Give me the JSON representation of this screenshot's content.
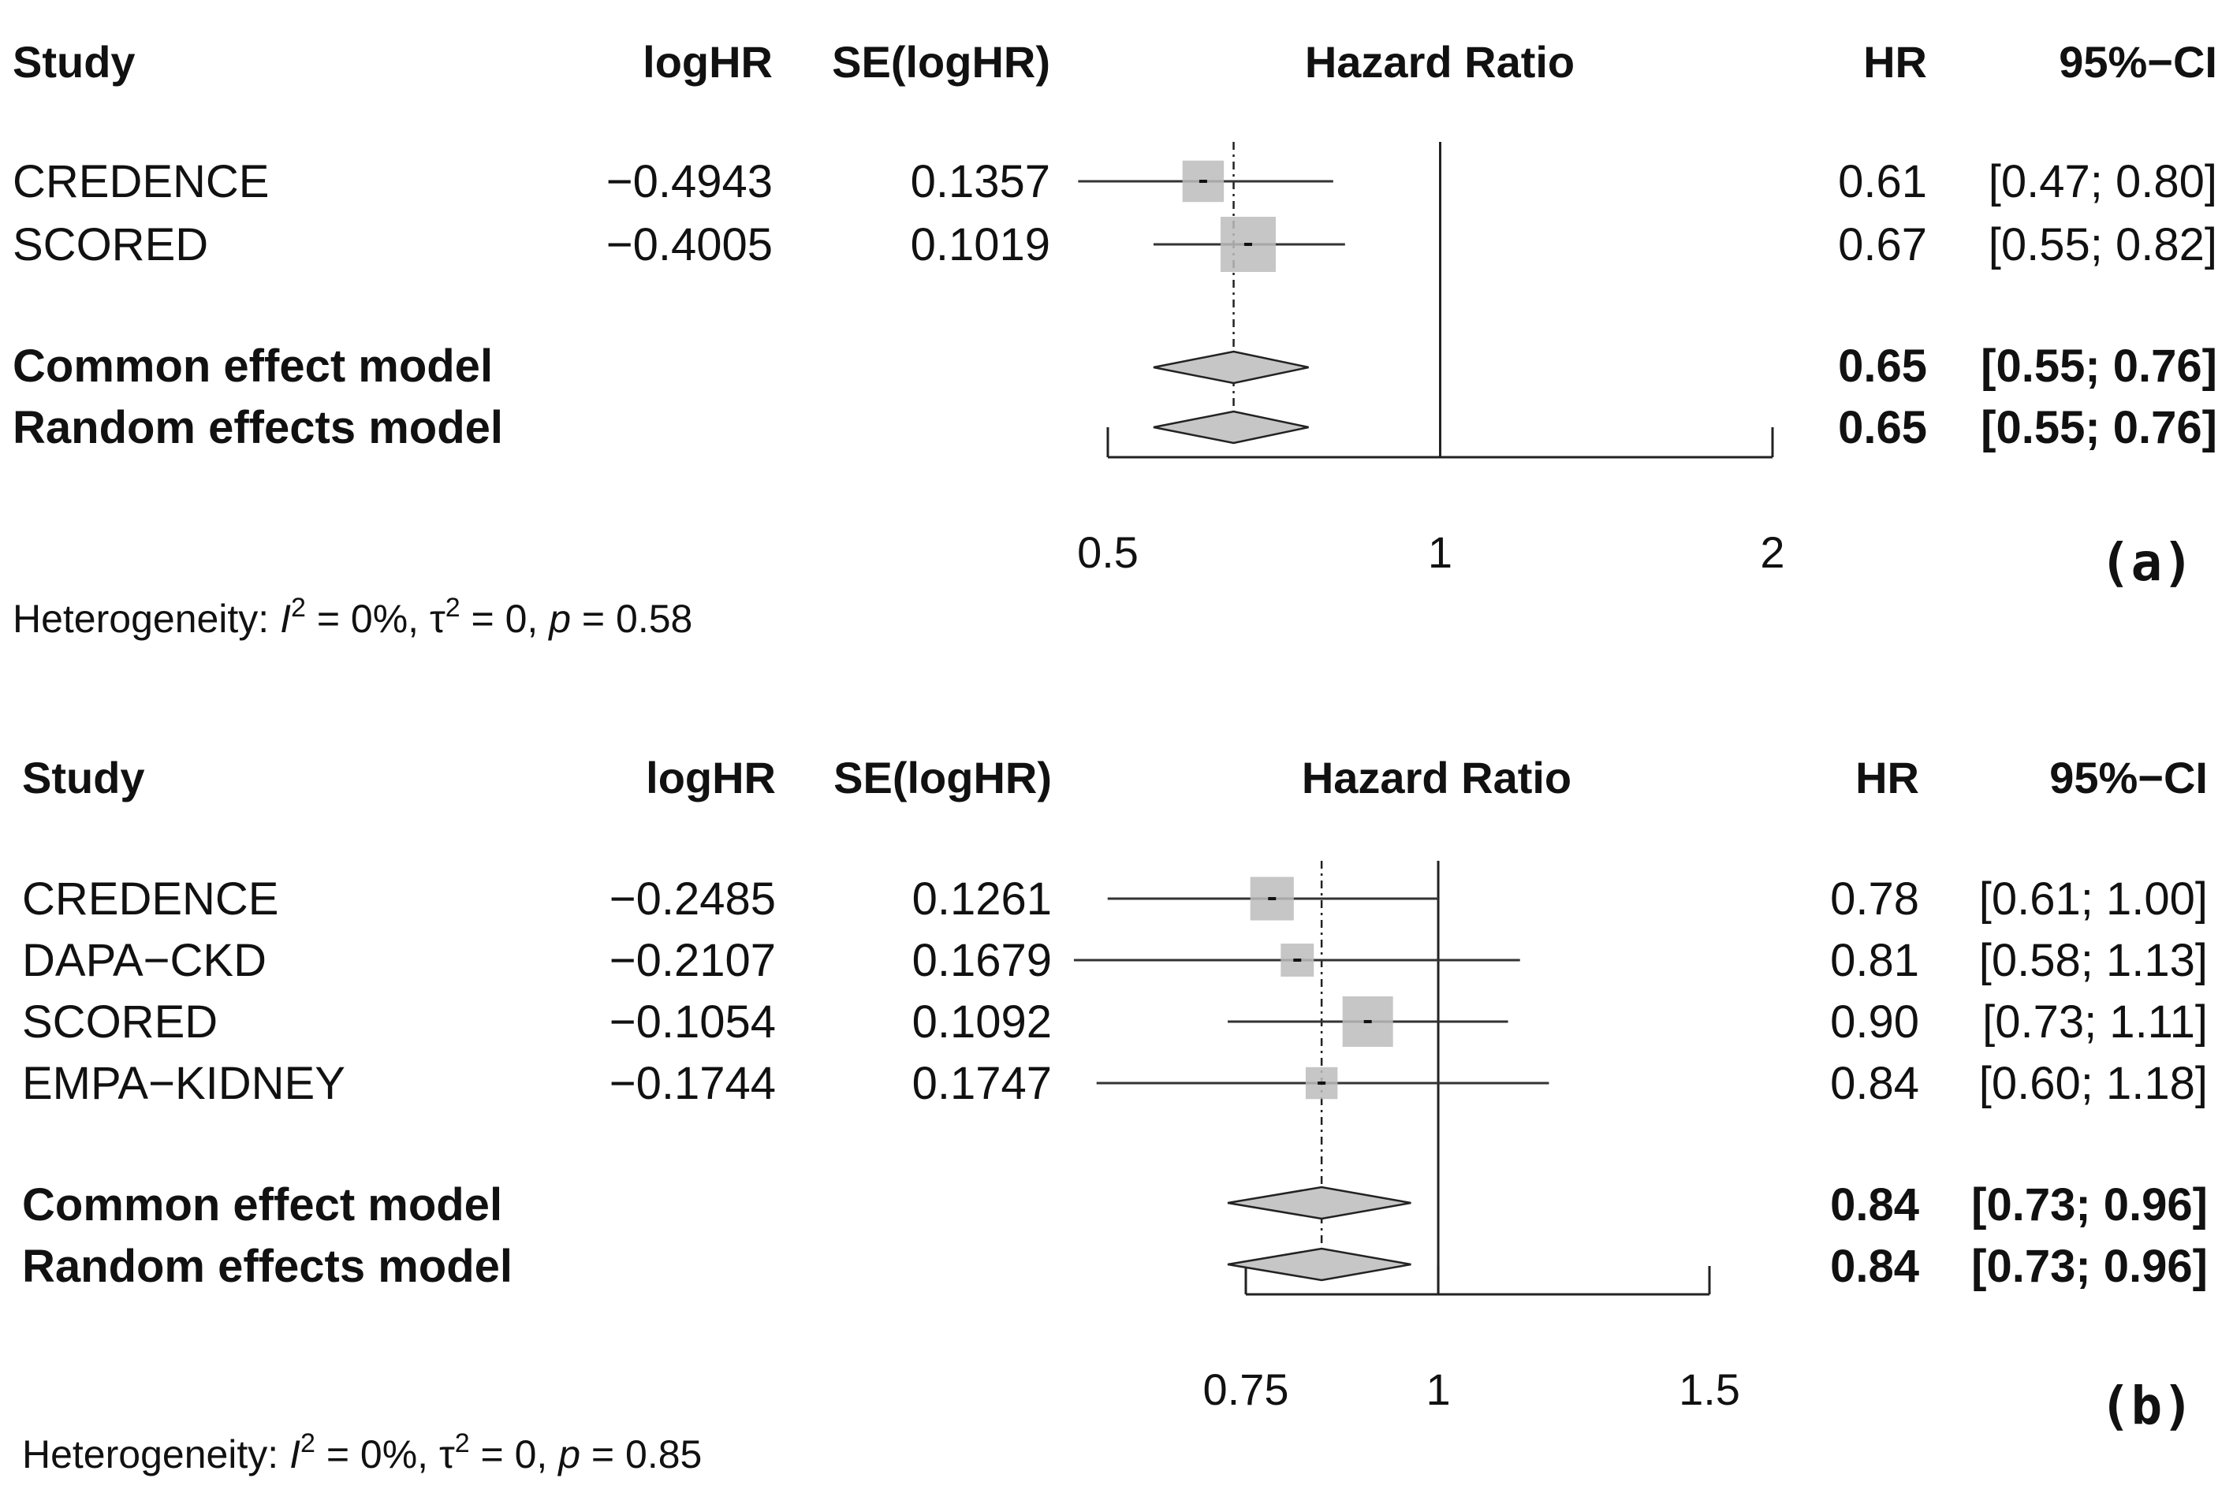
{
  "chart_data": [
    {
      "type": "forest",
      "panel_label": "(a)",
      "measure": "Hazard Ratio",
      "columns": {
        "study": "Study",
        "est": "logHR",
        "se": "SE(logHR)",
        "plot": "Hazard Ratio",
        "hr": "HR",
        "ci": "95%−CI"
      },
      "studies": [
        {
          "name": "CREDENCE",
          "loghr": "−0.4943",
          "se": "0.1357",
          "hr_text": "0.61",
          "ci_text": "[0.47; 0.80]",
          "hr": 0.61,
          "lo": 0.47,
          "hi": 0.8,
          "weight": 0.36
        },
        {
          "name": "SCORED",
          "loghr": "−0.4005",
          "se": "0.1019",
          "hr_text": "0.67",
          "ci_text": "[0.55; 0.82]",
          "hr": 0.67,
          "lo": 0.55,
          "hi": 0.82,
          "weight": 0.64
        }
      ],
      "pooled": [
        {
          "name": "Common effect model",
          "hr_text": "0.65",
          "ci_text": "[0.55; 0.76]",
          "hr": 0.65,
          "lo": 0.55,
          "hi": 0.76
        },
        {
          "name": "Random effects model",
          "hr_text": "0.65",
          "ci_text": "[0.55; 0.76]",
          "hr": 0.65,
          "lo": 0.55,
          "hi": 0.76
        }
      ],
      "axis": {
        "scale": "log",
        "ticks": [
          0.5,
          1,
          2
        ],
        "tick_labels": [
          "0.5",
          "1",
          "2"
        ],
        "xlim": [
          0.5,
          2
        ],
        "null_line": 1
      },
      "heterogeneity": {
        "prefix": "Heterogeneity: ",
        "i2_label": "I",
        "i2_value": " = 0%, ",
        "tau2_label": "τ",
        "tau2_value": " = 0, ",
        "p_label": "p",
        "p_value": " = 0.58",
        "sup": "2"
      }
    },
    {
      "type": "forest",
      "panel_label": "(b)",
      "measure": "Hazard Ratio",
      "columns": {
        "study": "Study",
        "est": "logHR",
        "se": "SE(logHR)",
        "plot": "Hazard Ratio",
        "hr": "HR",
        "ci": "95%−CI"
      },
      "studies": [
        {
          "name": "CREDENCE",
          "loghr": "−0.2485",
          "se": "0.1261",
          "hr_text": "0.78",
          "ci_text": "[0.61; 1.00]",
          "hr": 0.78,
          "lo": 0.61,
          "hi": 1.0,
          "weight": 0.26
        },
        {
          "name": "DAPA−CKD",
          "loghr": "−0.2107",
          "se": "0.1679",
          "hr_text": "0.81",
          "ci_text": "[0.58; 1.13]",
          "hr": 0.81,
          "lo": 0.58,
          "hi": 1.13,
          "weight": 0.15
        },
        {
          "name": "SCORED",
          "loghr": "−0.1054",
          "se": "0.1092",
          "hr_text": "0.90",
          "ci_text": "[0.73; 1.11]",
          "hr": 0.9,
          "lo": 0.73,
          "hi": 1.11,
          "weight": 0.35
        },
        {
          "name": "EMPA−KIDNEY",
          "loghr": "−0.1744",
          "se": "0.1747",
          "hr_text": "0.84",
          "ci_text": "[0.60; 1.18]",
          "hr": 0.84,
          "lo": 0.6,
          "hi": 1.18,
          "weight": 0.14
        }
      ],
      "pooled": [
        {
          "name": "Common effect model",
          "hr_text": "0.84",
          "ci_text": "[0.73; 0.96]",
          "hr": 0.84,
          "lo": 0.73,
          "hi": 0.96
        },
        {
          "name": "Random effects model",
          "hr_text": "0.84",
          "ci_text": "[0.73; 0.96]",
          "hr": 0.84,
          "lo": 0.73,
          "hi": 0.96
        }
      ],
      "axis": {
        "scale": "log",
        "ticks": [
          0.75,
          1,
          1.5
        ],
        "tick_labels": [
          "0.75",
          "1",
          "1.5"
        ],
        "xlim": [
          0.75,
          1.5
        ],
        "null_line": 1
      },
      "heterogeneity": {
        "prefix": "Heterogeneity: ",
        "i2_label": "I",
        "i2_value": " = 0%, ",
        "tau2_label": "τ",
        "tau2_value": " = 0, ",
        "p_label": "p",
        "p_value": " = 0.85",
        "sup": "2"
      }
    }
  ]
}
